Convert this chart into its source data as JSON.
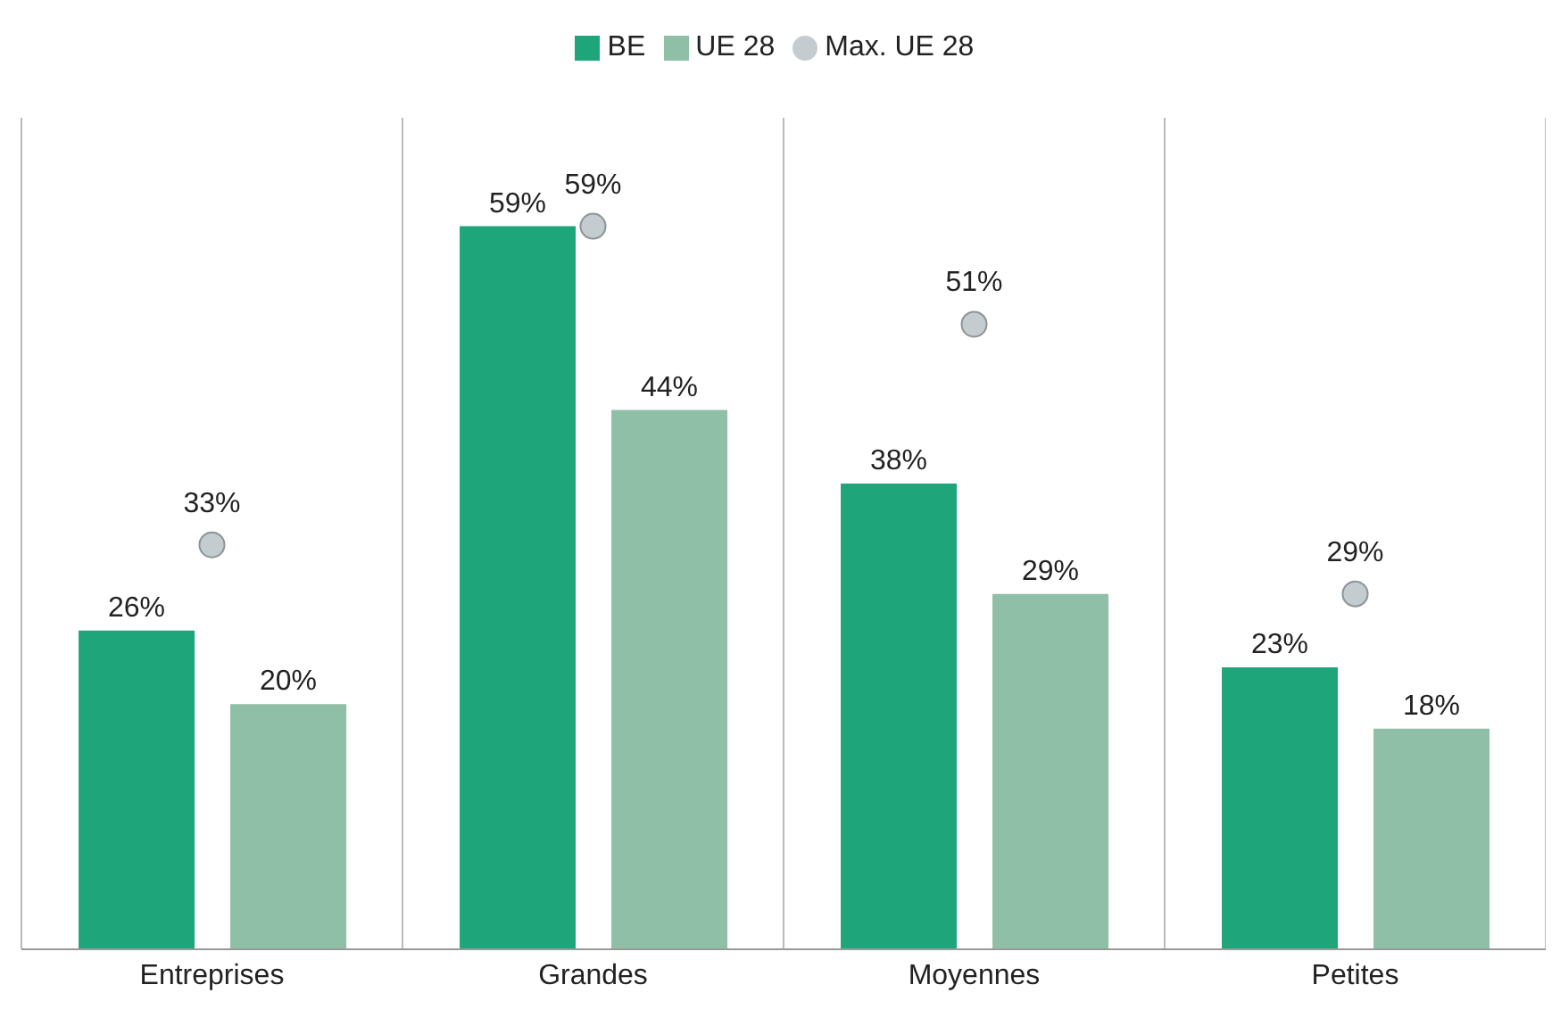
{
  "chart_data": {
    "type": "bar",
    "categories": [
      "Entreprises",
      "Grandes",
      "Moyennes",
      "Petites"
    ],
    "series": [
      {
        "name": "BE",
        "color": "#1fa57a",
        "values": [
          26,
          59,
          38,
          23
        ],
        "value_labels": [
          "26%",
          "59%",
          "38%",
          "23%"
        ]
      },
      {
        "name": "UE 28",
        "color": "#8fbfa6",
        "values": [
          20,
          44,
          29,
          18
        ],
        "value_labels": [
          "20%",
          "44%",
          "29%",
          "18%"
        ]
      },
      {
        "name": "Max. UE 28",
        "type": "scatter",
        "color": "#c5ccd0",
        "values": [
          33,
          59,
          51,
          29
        ],
        "value_labels": [
          "33%",
          "59%",
          "51%",
          "29%"
        ]
      }
    ],
    "grid": "x",
    "legend": "top",
    "marker": "circle"
  }
}
